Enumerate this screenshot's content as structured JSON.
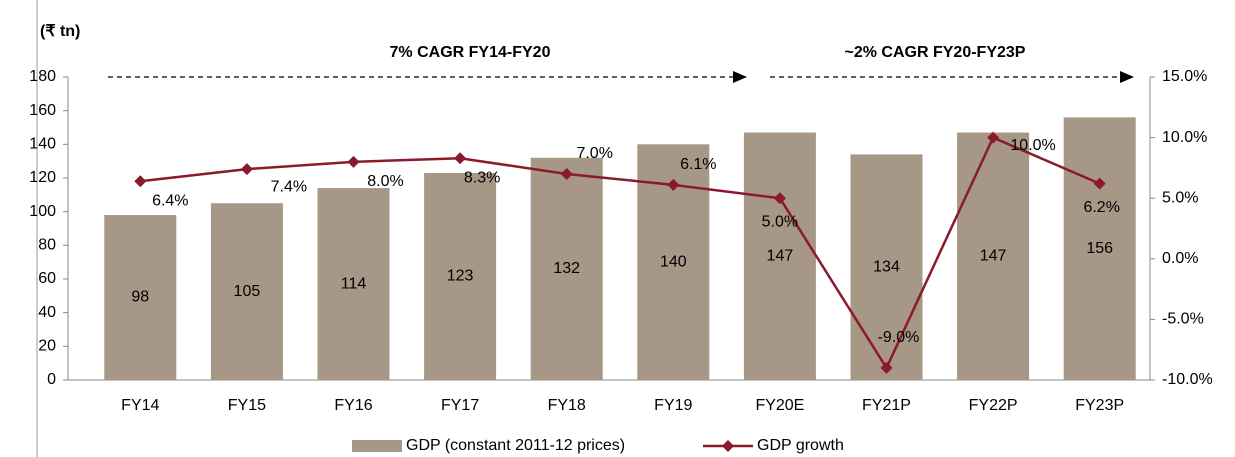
{
  "chart_data": {
    "type": "bar_line",
    "y_label": "(₹ tn)",
    "annotations": [
      "7% CAGR FY14-FY20",
      "~2% CAGR FY20-FY23P"
    ],
    "categories": [
      "FY14",
      "FY15",
      "FY16",
      "FY17",
      "FY18",
      "FY19",
      "FY20E",
      "FY21P",
      "FY22P",
      "FY23P"
    ],
    "series": [
      {
        "name": "GDP (constant 2011-12 prices)",
        "type": "bar",
        "color": "#a69786",
        "values": [
          98,
          105,
          114,
          123,
          132,
          140,
          147,
          134,
          147,
          156
        ]
      },
      {
        "name": "GDP growth",
        "type": "line",
        "axis": "y2",
        "color": "#8b1a2b",
        "values": [
          6.4,
          7.4,
          8.0,
          8.3,
          7.0,
          6.1,
          5.0,
          -9.0,
          10.0,
          6.2
        ],
        "value_labels": [
          "6.4%",
          "7.4%",
          "8.0%",
          "8.3%",
          "7.0%",
          "6.1%",
          "5.0%",
          "-9.0%",
          "10.0%",
          "6.2%"
        ]
      }
    ],
    "ylim": [
      0,
      180
    ],
    "yticks": [
      0,
      20,
      40,
      60,
      80,
      100,
      120,
      140,
      160,
      180
    ],
    "y2lim": [
      -10,
      15
    ],
    "y2ticks": [
      {
        "value": -10,
        "label": "-10.0%"
      },
      {
        "value": -5,
        "label": "-5.0%"
      },
      {
        "value": 0,
        "label": "0.0%"
      },
      {
        "value": 5,
        "label": "5.0%"
      },
      {
        "value": 10,
        "label": "10.0%"
      },
      {
        "value": 15,
        "label": "15.0%"
      }
    ],
    "legend": "bottom"
  }
}
